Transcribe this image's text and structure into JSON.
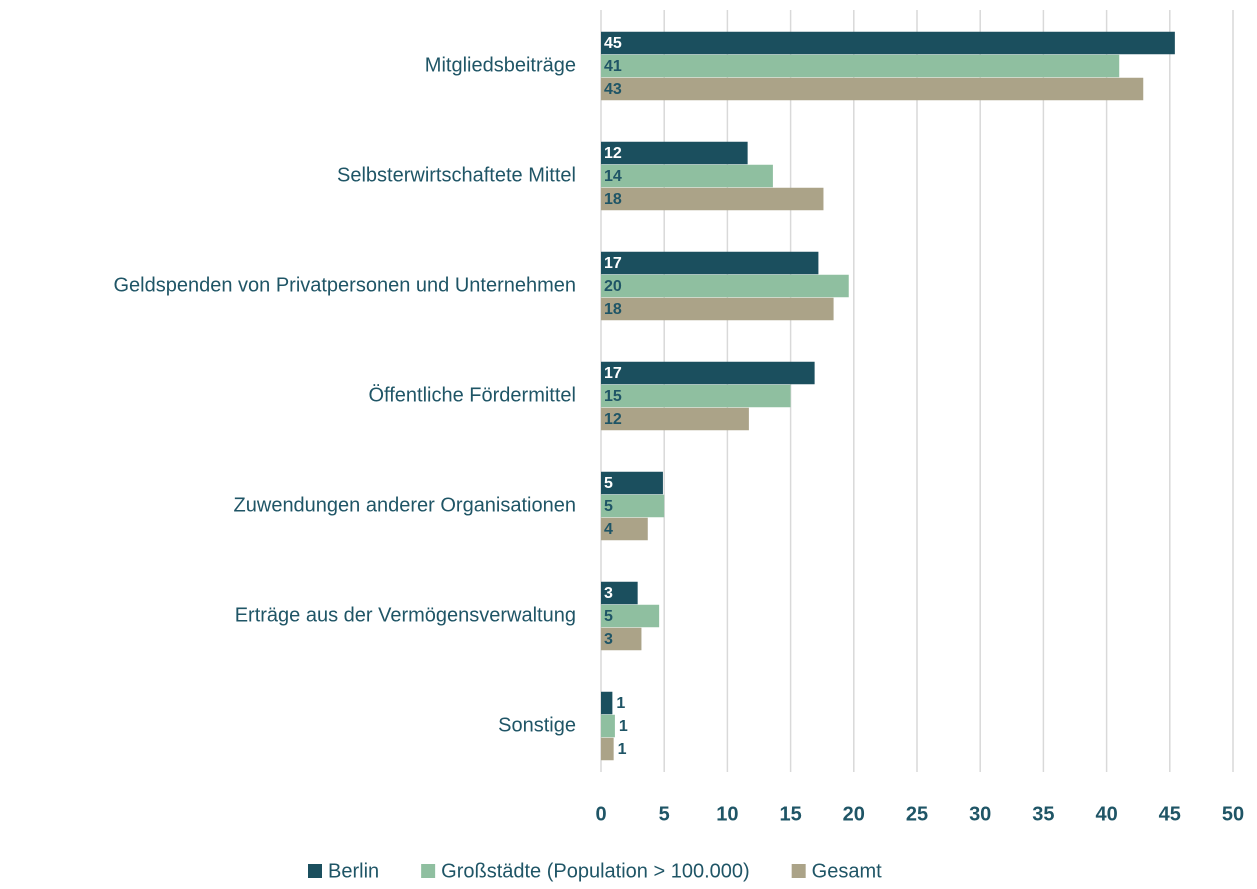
{
  "chart_data": {
    "type": "bar",
    "orientation": "horizontal",
    "categories": [
      "Mitgliedsbeiträge",
      "Selbsterwirtschaftete Mittel",
      "Geldspenden von Privatpersonen und Unternehmen",
      "Öffentliche Fördermittel",
      "Zuwendungen anderer Organisationen",
      "Erträge aus der Vermögensverwaltung",
      "Sonstige"
    ],
    "series": [
      {
        "name": "Berlin",
        "color": "#1b4f5e",
        "values": [
          45.4,
          11.6,
          17.2,
          16.9,
          4.9,
          2.9,
          0.9
        ],
        "value_labels": [
          "45",
          "12",
          "17",
          "17",
          "5",
          "3",
          "1"
        ]
      },
      {
        "name": "Großstädte (Population > 100.000)",
        "color": "#8fbfa0",
        "values": [
          41.0,
          13.6,
          19.6,
          15.0,
          5.0,
          4.6,
          1.1
        ],
        "value_labels": [
          "41",
          "14",
          "20",
          "15",
          "5",
          "5",
          "1"
        ]
      },
      {
        "name": "Gesamt",
        "color": "#aba388",
        "values": [
          42.9,
          17.6,
          18.4,
          11.7,
          3.7,
          3.2,
          1.0
        ],
        "value_labels": [
          "43",
          "18",
          "18",
          "12",
          "4",
          "3",
          "1"
        ]
      }
    ],
    "xlim": [
      0,
      50
    ],
    "xticks": [
      0,
      5,
      10,
      15,
      20,
      25,
      30,
      35,
      40,
      45,
      50
    ],
    "grid": true,
    "legend": "bottom"
  }
}
